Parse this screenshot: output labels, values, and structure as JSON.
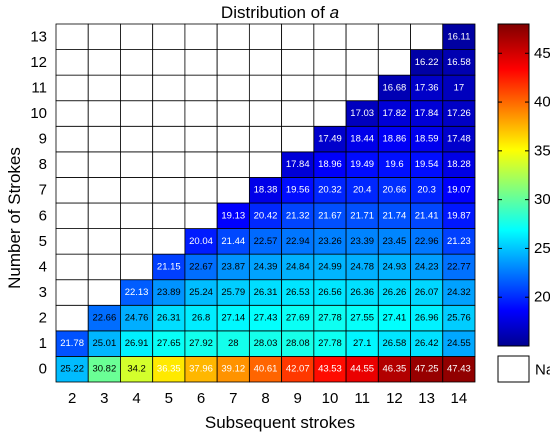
{
  "chart_data": {
    "type": "heatmap",
    "title_prefix": "Distribution of ",
    "title_var": "a",
    "xlabel": "Subsequent strokes",
    "ylabel": "Number of Strokes",
    "x_categories": [
      "2",
      "3",
      "4",
      "5",
      "6",
      "7",
      "8",
      "9",
      "10",
      "11",
      "12",
      "13",
      "14"
    ],
    "y_categories": [
      "0",
      "1",
      "2",
      "3",
      "4",
      "5",
      "6",
      "7",
      "8",
      "9",
      "10",
      "11",
      "12",
      "13"
    ],
    "rows": [
      {
        "y": "0",
        "values": [
          25.22,
          30.82,
          34.2,
          36.35,
          37.96,
          39.12,
          40.61,
          42.07,
          43.53,
          44.55,
          46.35,
          47.25,
          47.43
        ]
      },
      {
        "y": "1",
        "values": [
          21.78,
          25.01,
          26.91,
          27.65,
          27.92,
          28,
          28.03,
          28.08,
          27.78,
          27.1,
          26.58,
          26.42,
          24.55
        ]
      },
      {
        "y": "2",
        "values": [
          null,
          22.66,
          24.76,
          26.31,
          26.8,
          27.14,
          27.43,
          27.69,
          27.78,
          27.55,
          27.41,
          26.96,
          25.76
        ]
      },
      {
        "y": "3",
        "values": [
          null,
          null,
          22.13,
          23.89,
          25.24,
          25.79,
          26.31,
          26.53,
          26.56,
          26.36,
          26.26,
          26.07,
          24.32
        ]
      },
      {
        "y": "4",
        "values": [
          null,
          null,
          null,
          21.15,
          22.67,
          23.87,
          24.39,
          24.84,
          24.99,
          24.78,
          24.93,
          24.23,
          22.77
        ]
      },
      {
        "y": "5",
        "values": [
          null,
          null,
          null,
          null,
          20.04,
          21.44,
          22.57,
          22.94,
          23.26,
          23.39,
          23.45,
          22.96,
          21.23
        ]
      },
      {
        "y": "6",
        "values": [
          null,
          null,
          null,
          null,
          null,
          19.13,
          20.42,
          21.32,
          21.67,
          21.71,
          21.74,
          21.41,
          19.87
        ]
      },
      {
        "y": "7",
        "values": [
          null,
          null,
          null,
          null,
          null,
          null,
          18.38,
          19.56,
          20.32,
          20.4,
          20.66,
          20.3,
          19.07
        ]
      },
      {
        "y": "8",
        "values": [
          null,
          null,
          null,
          null,
          null,
          null,
          null,
          17.84,
          18.96,
          19.49,
          19.6,
          19.54,
          18.28
        ]
      },
      {
        "y": "9",
        "values": [
          null,
          null,
          null,
          null,
          null,
          null,
          null,
          null,
          17.49,
          18.44,
          18.86,
          18.59,
          17.48
        ]
      },
      {
        "y": "10",
        "values": [
          null,
          null,
          null,
          null,
          null,
          null,
          null,
          null,
          null,
          17.03,
          17.82,
          17.84,
          17.26
        ]
      },
      {
        "y": "11",
        "values": [
          null,
          null,
          null,
          null,
          null,
          null,
          null,
          null,
          null,
          null,
          16.68,
          17.36,
          17
        ]
      },
      {
        "y": "12",
        "values": [
          null,
          null,
          null,
          null,
          null,
          null,
          null,
          null,
          null,
          null,
          null,
          16.22,
          16.58
        ]
      },
      {
        "y": "13",
        "values": [
          null,
          null,
          null,
          null,
          null,
          null,
          null,
          null,
          null,
          null,
          null,
          null,
          16.11
        ]
      }
    ],
    "colorbar": {
      "colormap": "jet",
      "range": [
        15,
        48
      ],
      "ticks": [
        20,
        25,
        30,
        35,
        40,
        45
      ],
      "nan_label": "NaN",
      "nan_color": "#ffffff"
    }
  }
}
